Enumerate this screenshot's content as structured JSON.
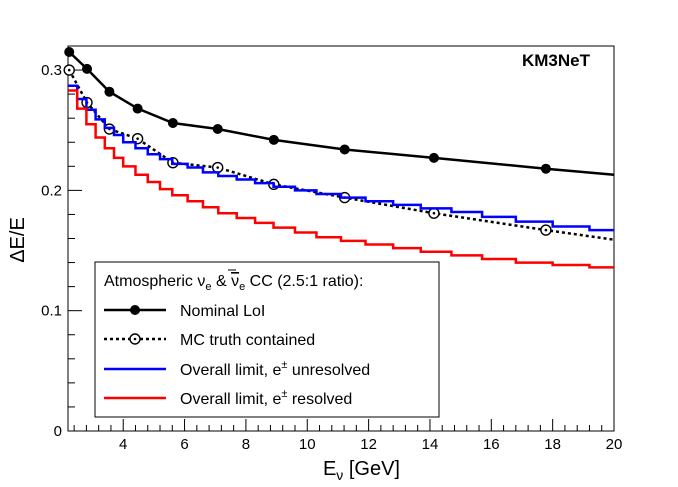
{
  "chart_data": {
    "type": "line",
    "title": "",
    "watermark": "KM3NeT",
    "xlabel_main": "E",
    "xlabel_sub": "ν",
    "xlabel_unit": " [GeV]",
    "ylabel": "ΔE/E",
    "xlim": [
      2.2,
      20
    ],
    "ylim": [
      0,
      0.32
    ],
    "x_ticks": [
      4,
      6,
      8,
      10,
      12,
      14,
      16,
      18,
      20
    ],
    "x_tick_labels": [
      "4",
      "6",
      "8",
      "10",
      "12",
      "14",
      "16",
      "18",
      "20"
    ],
    "y_ticks": [
      0,
      0.1,
      0.2,
      0.3
    ],
    "y_tick_labels": [
      "0",
      "0.1",
      "0.2",
      "0.3"
    ],
    "legend": {
      "title_parts": [
        "Atmospheric ",
        "ν",
        "e",
        " & ",
        "ν",
        "e",
        " CC (2.5:1 ratio):"
      ],
      "entries": [
        {
          "label": "Nominal LoI"
        },
        {
          "label": "MC truth contained"
        },
        {
          "label_main": "Overall limit, e",
          "label_sup": "±",
          "label_end": " unresolved"
        },
        {
          "label_main": "Overall limit, e",
          "label_sup": "±",
          "label_end": " resolved"
        }
      ]
    },
    "series": [
      {
        "name": "Nominal LoI",
        "style": "solid-dots",
        "color": "#000000",
        "x": [
          2.24,
          2.82,
          3.55,
          4.47,
          5.62,
          7.08,
          8.91,
          11.22,
          14.13,
          17.78,
          20.0
        ],
        "y": [
          0.315,
          0.301,
          0.282,
          0.268,
          0.256,
          0.251,
          0.242,
          0.234,
          0.227,
          0.218,
          0.213
        ],
        "markers": [
          true,
          true,
          true,
          true,
          true,
          true,
          true,
          true,
          true,
          true,
          false
        ]
      },
      {
        "name": "MC truth contained",
        "style": "dotted-open-circles",
        "color": "#000000",
        "x": [
          2.24,
          2.82,
          3.55,
          4.47,
          5.62,
          7.08,
          8.91,
          11.22,
          14.13,
          17.78,
          20.0
        ],
        "y": [
          0.3,
          0.273,
          0.251,
          0.243,
          0.223,
          0.219,
          0.205,
          0.194,
          0.181,
          0.167,
          0.159
        ],
        "markers": [
          true,
          true,
          true,
          true,
          true,
          true,
          true,
          true,
          true,
          true,
          false
        ]
      },
      {
        "name": "Overall limit, e± unresolved",
        "style": "step",
        "color": "#0000ff",
        "x": [
          2.2,
          2.5,
          2.8,
          3.1,
          3.4,
          3.7,
          4.0,
          4.4,
          4.8,
          5.2,
          5.6,
          6.1,
          6.6,
          7.1,
          7.7,
          8.3,
          8.9,
          9.6,
          10.3,
          11.1,
          11.9,
          12.8,
          13.7,
          14.7,
          15.7,
          16.8,
          18.0,
          19.2,
          20.0
        ],
        "y": [
          0.287,
          0.276,
          0.267,
          0.259,
          0.252,
          0.246,
          0.24,
          0.235,
          0.23,
          0.226,
          0.222,
          0.219,
          0.215,
          0.212,
          0.209,
          0.206,
          0.203,
          0.2,
          0.197,
          0.194,
          0.191,
          0.188,
          0.185,
          0.182,
          0.178,
          0.174,
          0.17,
          0.167,
          0.165
        ]
      },
      {
        "name": "Overall limit, e± resolved",
        "style": "step",
        "color": "#ff0000",
        "x": [
          2.2,
          2.5,
          2.8,
          3.1,
          3.4,
          3.7,
          4.0,
          4.4,
          4.8,
          5.2,
          5.6,
          6.1,
          6.6,
          7.1,
          7.7,
          8.3,
          8.9,
          9.6,
          10.3,
          11.1,
          11.9,
          12.8,
          13.7,
          14.7,
          15.7,
          16.8,
          18.0,
          19.2,
          20.0
        ],
        "y": [
          0.283,
          0.268,
          0.255,
          0.244,
          0.235,
          0.227,
          0.22,
          0.213,
          0.207,
          0.201,
          0.196,
          0.191,
          0.186,
          0.181,
          0.177,
          0.173,
          0.169,
          0.165,
          0.161,
          0.158,
          0.155,
          0.152,
          0.149,
          0.146,
          0.143,
          0.14,
          0.138,
          0.136,
          0.135
        ]
      }
    ]
  }
}
